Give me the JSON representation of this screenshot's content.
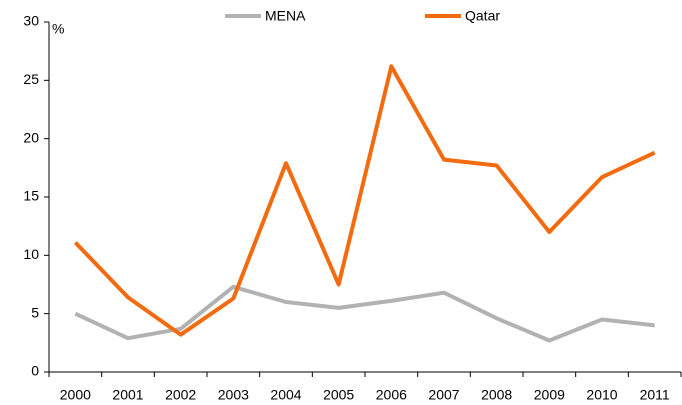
{
  "chart_data": {
    "type": "line",
    "ylabel": "%",
    "categories": [
      "2000",
      "2001",
      "2002",
      "2003",
      "2004",
      "2005",
      "2006",
      "2007",
      "2008",
      "2009",
      "2010",
      "2011"
    ],
    "series": [
      {
        "name": "MENA",
        "color": "#b2b2b2",
        "values": [
          5.0,
          2.9,
          3.7,
          7.3,
          6.0,
          5.5,
          6.1,
          6.8,
          4.6,
          2.7,
          4.5,
          4.0
        ]
      },
      {
        "name": "Qatar",
        "color": "#f26b10",
        "values": [
          11.1,
          6.4,
          3.2,
          6.3,
          17.9,
          7.5,
          26.2,
          18.2,
          17.7,
          12.0,
          16.7,
          18.8
        ]
      }
    ],
    "ylim": [
      0,
      30
    ],
    "yticks": [
      0,
      5,
      10,
      15,
      20,
      25,
      30
    ],
    "legend": "top",
    "grid": false
  }
}
